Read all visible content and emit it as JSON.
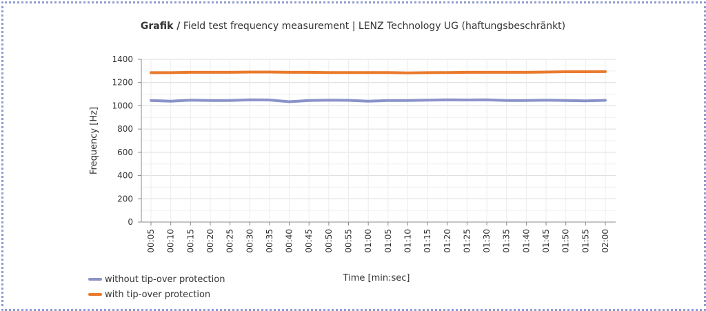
{
  "chart_data": {
    "type": "line",
    "title_lead": "Grafik /",
    "title": "Field test frequency measurement | LENZ Technology UG (haftungsbeschränkt)",
    "xlabel": "Time [min:sec]",
    "ylabel": "Frequency [Hz]",
    "ylim": [
      0,
      1400
    ],
    "yticks": [
      0,
      200,
      400,
      600,
      800,
      1000,
      1200,
      1400
    ],
    "categories": [
      "00:05",
      "00:10",
      "00:15",
      "00:20",
      "00:25",
      "00:30",
      "00:35",
      "00:40",
      "00:45",
      "00:50",
      "00:55",
      "01:00",
      "01:05",
      "01:10",
      "01:15",
      "01:20",
      "01:25",
      "01:30",
      "01:35",
      "01:40",
      "01:45",
      "01:50",
      "01:55",
      "02:00"
    ],
    "grid": true,
    "legend_position": "bottom-left",
    "series": [
      {
        "name": "without tip-over protection",
        "color": "#8a93c8",
        "values": [
          1045,
          1040,
          1048,
          1045,
          1045,
          1052,
          1050,
          1035,
          1045,
          1048,
          1047,
          1040,
          1045,
          1045,
          1048,
          1052,
          1050,
          1052,
          1045,
          1045,
          1048,
          1045,
          1042,
          1047
        ]
      },
      {
        "name": "with tip-over protection",
        "color": "#ea7a2c",
        "values": [
          1285,
          1285,
          1288,
          1288,
          1288,
          1290,
          1290,
          1288,
          1288,
          1286,
          1286,
          1286,
          1286,
          1283,
          1285,
          1286,
          1288,
          1288,
          1288,
          1288,
          1290,
          1293,
          1293,
          1294
        ]
      }
    ]
  }
}
